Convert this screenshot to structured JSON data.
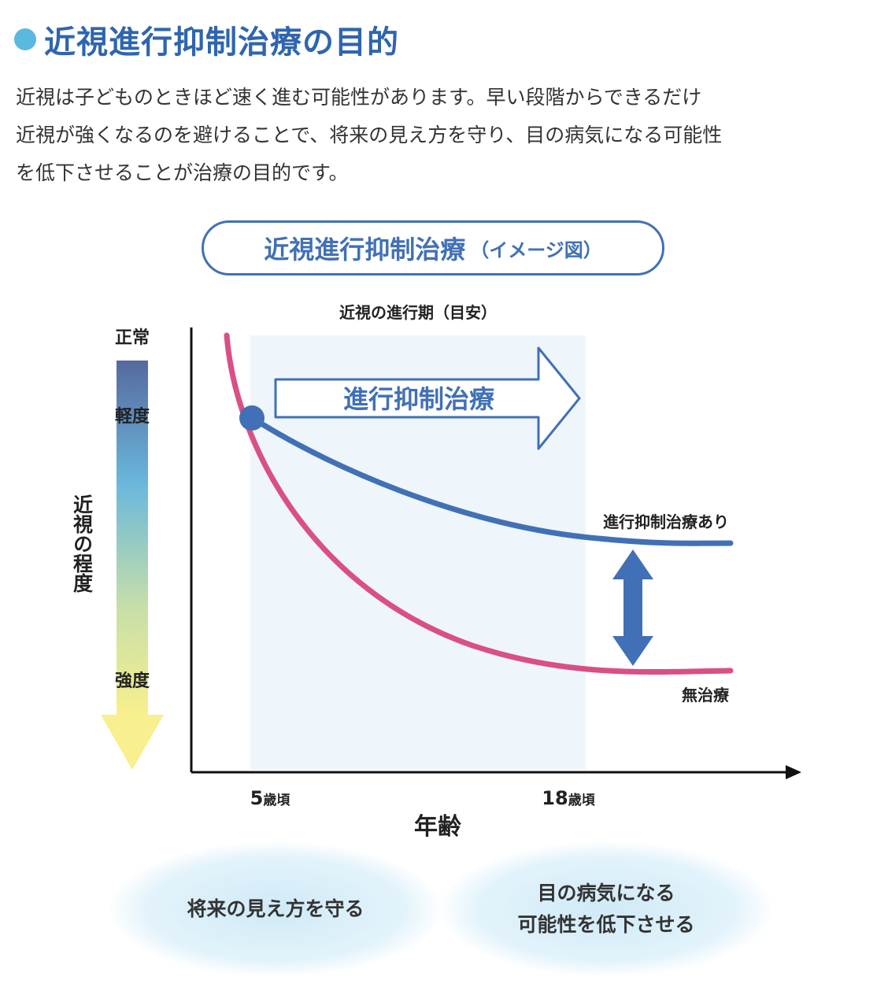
{
  "heading": {
    "title": "近視進行抑制治療の目的"
  },
  "intro": {
    "lines": [
      "近視は子どものときほど速く進む可能性があります。早い段階からできるだけ",
      "近視が強くなるのを避けることで、将来の見え方を守り、目の病気になる可能性",
      "を低下させることが治療の目的です。"
    ]
  },
  "chart_title": {
    "main": "近視進行抑制治療",
    "sub": "（イメージ図）"
  },
  "chart_data": {
    "type": "line",
    "title": "近視進行抑制治療（イメージ図）",
    "xlabel": "年齢",
    "ylabel": "近視の程度",
    "x_ticks": [
      {
        "num": "5",
        "unit": "歳頃",
        "x": 5
      },
      {
        "num": "18",
        "unit": "歳頃",
        "x": 18
      }
    ],
    "y_scale": {
      "top": "正常",
      "middle": "軽度",
      "bottom": "強度"
    },
    "progression_period": {
      "label": "近視の進行期（目安）",
      "x_range": [
        5,
        18
      ]
    },
    "treatment_arrow_label": "進行抑制治療",
    "series": [
      {
        "name": "進行抑制治療あり",
        "color": "#4170b6"
      },
      {
        "name": "無治療",
        "color": "#d94f86"
      }
    ],
    "colors": {
      "shade": "#eef6fc",
      "axis": "#111111",
      "gradient_top": "#56699f",
      "gradient_mid": "#6ab8dc",
      "gradient_bottom": "#f8ef8e"
    }
  },
  "outcomes": [
    {
      "lines": [
        "将来の見え方を守る"
      ]
    },
    {
      "lines": [
        "目の病気になる",
        "可能性を低下させる"
      ]
    }
  ]
}
